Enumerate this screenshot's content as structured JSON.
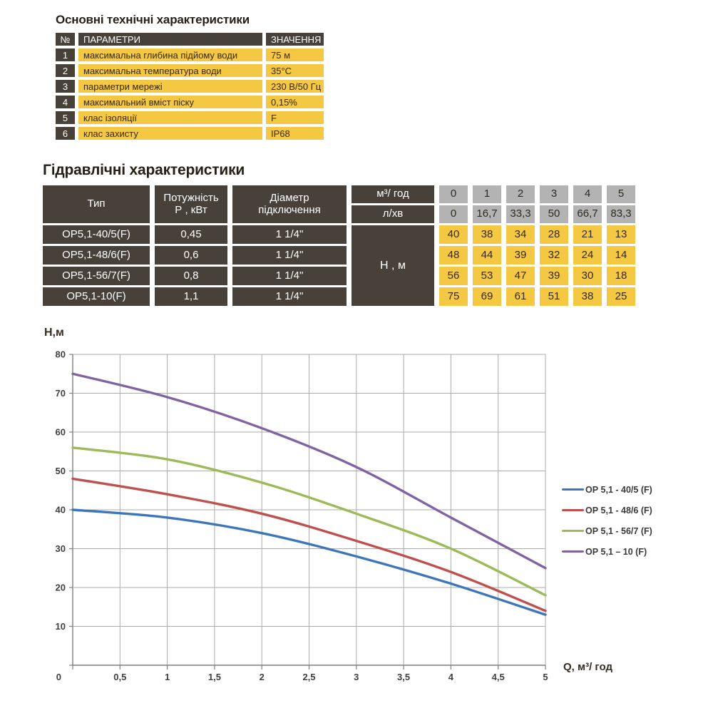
{
  "section1": {
    "title": "Основні технічні характеристики",
    "table": {
      "headers": {
        "num": "№",
        "param": "ПАРАМЕТРИ",
        "value": "ЗНАЧЕННЯ"
      },
      "rows": [
        {
          "num": "1",
          "param": "максимальна глибина підйому води",
          "value": "75 м"
        },
        {
          "num": "2",
          "param": "максимальна температура води",
          "value": "35°С"
        },
        {
          "num": "3",
          "param": "параметри мережі",
          "value": "230 В/50 Гц"
        },
        {
          "num": "4",
          "param": "максимальний вміст піску",
          "value": "0,15%"
        },
        {
          "num": "5",
          "param": "клас ізоляції",
          "value": "F"
        },
        {
          "num": "6",
          "param": "клас захисту",
          "value": "IP68"
        }
      ]
    }
  },
  "section2": {
    "title": "Гідравлічні характеристики",
    "table": {
      "col_type": "Тип",
      "col_power_line1": "Потужність",
      "col_power_line2": "Р , кВт",
      "col_diameter_line1": "Діаметр",
      "col_diameter_line2": "підключення",
      "unit_flow_m3": "м³/ год",
      "unit_flow_lmin": "л/хв",
      "head_unit": "Н , м",
      "flow_m3": [
        "0",
        "1",
        "2",
        "3",
        "4",
        "5"
      ],
      "flow_lmin": [
        "0",
        "16,7",
        "33,3",
        "50",
        "66,7",
        "83,3"
      ],
      "rows": [
        {
          "type": "ОР5,1-40/5(F)",
          "power": "0,45",
          "diameter": "1 1/4\"",
          "heads": [
            "40",
            "38",
            "34",
            "28",
            "21",
            "13"
          ]
        },
        {
          "type": "ОР5,1-48/6(F)",
          "power": "0,6",
          "diameter": "1 1/4\"",
          "heads": [
            "48",
            "44",
            "39",
            "32",
            "24",
            "14"
          ]
        },
        {
          "type": "ОР5,1-56/7(F)",
          "power": "0,8",
          "diameter": "1 1/4\"",
          "heads": [
            "56",
            "53",
            "47",
            "39",
            "30",
            "18"
          ]
        },
        {
          "type": "ОР5,1-10(F)",
          "power": "1,1",
          "diameter": "1 1/4\"",
          "heads": [
            "75",
            "69",
            "61",
            "51",
            "38",
            "25"
          ]
        }
      ]
    }
  },
  "chart_data": {
    "type": "line",
    "xlabel": "Q,  м³/ год",
    "ylabel": "Н,м",
    "x": [
      0,
      1,
      2,
      3,
      4,
      5
    ],
    "series": [
      {
        "name": "ОР 5,1 - 40/5 (F)",
        "color": "#3e76bb",
        "values": [
          40,
          38,
          34,
          28,
          21,
          13
        ]
      },
      {
        "name": "ОР 5,1 - 48/6 (F)",
        "color": "#c0504d",
        "values": [
          48,
          44,
          39,
          32,
          24,
          14
        ]
      },
      {
        "name": "ОР 5,1 - 56/7 (F)",
        "color": "#9bbb59",
        "values": [
          56,
          53,
          47,
          39,
          30,
          18
        ]
      },
      {
        "name": "ОР 5,1 – 10 (F)",
        "color": "#8064a2",
        "values": [
          75,
          69,
          61,
          51,
          38,
          25
        ]
      }
    ],
    "xlim": [
      0,
      5
    ],
    "ylim": [
      0,
      80
    ],
    "x_ticks": [
      "0",
      "0,5",
      "1",
      "1,5",
      "2",
      "2,5",
      "3",
      "3,5",
      "4",
      "4,5",
      "5"
    ],
    "y_ticks": [
      "0",
      "10",
      "20",
      "30",
      "40",
      "50",
      "60",
      "70",
      "80"
    ],
    "grid": true,
    "legend_position": "right"
  },
  "colors": {
    "accent_yellow": "#f4c843",
    "dark_cell": "#47413a",
    "gray_cell": "#b3b3b3",
    "grid_line": "#ababab",
    "axis_line": "#7f7f7f"
  }
}
